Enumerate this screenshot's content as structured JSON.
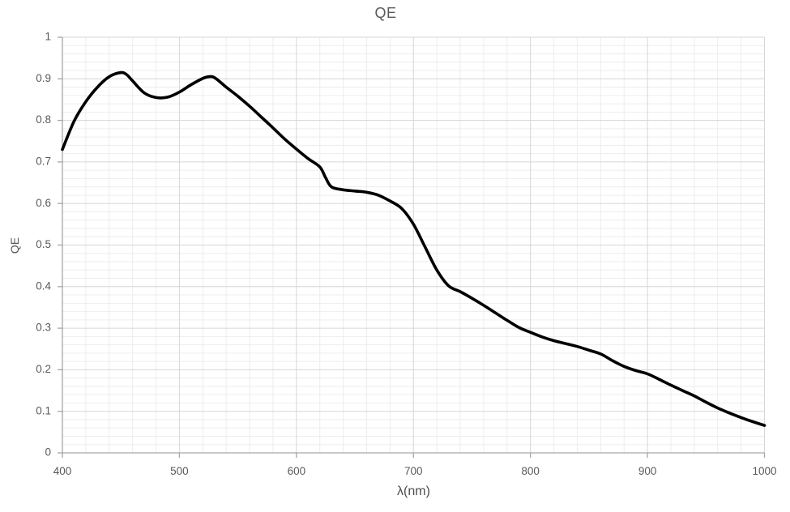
{
  "chart_title": "QE",
  "chart_data": {
    "type": "line",
    "title": "QE",
    "xlabel": "λ(nm)",
    "ylabel": "QE",
    "xlim": [
      400,
      1000
    ],
    "ylim": [
      0,
      1
    ],
    "x_tick_labels": [
      "400",
      "500",
      "600",
      "700",
      "800",
      "900",
      "1000"
    ],
    "x_tick_values": [
      400,
      500,
      600,
      700,
      800,
      900,
      1000
    ],
    "y_tick_labels": [
      "0",
      "0.1",
      "0.2",
      "0.3",
      "0.4",
      "0.5",
      "0.6",
      "0.7",
      "0.8",
      "0.9",
      "1"
    ],
    "y_tick_values": [
      0,
      0.1,
      0.2,
      0.3,
      0.4,
      0.5,
      0.6,
      0.7,
      0.8,
      0.9,
      1
    ],
    "x_minor_step": 20,
    "y_minor_step": 0.02,
    "grid": "major-and-minor",
    "legend_position": "none",
    "series": [
      {
        "name": "QE",
        "color": "#000000",
        "x": [
          400,
          410,
          420,
          430,
          440,
          450,
          455,
          460,
          470,
          480,
          490,
          500,
          510,
          520,
          525,
          530,
          540,
          550,
          560,
          570,
          580,
          590,
          600,
          610,
          620,
          625,
          630,
          640,
          650,
          660,
          670,
          680,
          690,
          700,
          710,
          720,
          730,
          740,
          750,
          760,
          770,
          780,
          790,
          800,
          810,
          820,
          830,
          840,
          850,
          860,
          870,
          880,
          890,
          900,
          910,
          920,
          930,
          940,
          950,
          960,
          970,
          980,
          990,
          1000
        ],
        "y": [
          0.73,
          0.798,
          0.845,
          0.88,
          0.905,
          0.915,
          0.91,
          0.895,
          0.866,
          0.855,
          0.856,
          0.868,
          0.886,
          0.901,
          0.905,
          0.903,
          0.88,
          0.858,
          0.834,
          0.808,
          0.782,
          0.755,
          0.731,
          0.708,
          0.688,
          0.662,
          0.64,
          0.633,
          0.63,
          0.627,
          0.62,
          0.606,
          0.588,
          0.55,
          0.495,
          0.44,
          0.402,
          0.388,
          0.372,
          0.355,
          0.337,
          0.319,
          0.302,
          0.29,
          0.279,
          0.27,
          0.263,
          0.256,
          0.247,
          0.238,
          0.222,
          0.208,
          0.198,
          0.19,
          0.177,
          0.163,
          0.15,
          0.137,
          0.122,
          0.108,
          0.096,
          0.085,
          0.075,
          0.066
        ]
      }
    ]
  },
  "colors": {
    "line": "#000000",
    "minor_grid": "#ededed",
    "major_grid": "#d6d6d6",
    "axis_line": "#a6a6a6",
    "tick_mark": "#a6a6a6",
    "tick_label": "#595959",
    "title_text": "#595959",
    "background": "#ffffff"
  }
}
